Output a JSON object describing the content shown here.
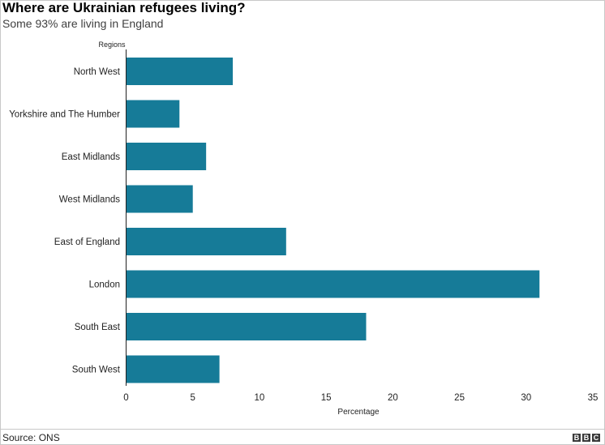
{
  "header": {
    "title": "Where are Ukrainian refugees living?",
    "subtitle": "Some 93% are living in England"
  },
  "footer": {
    "source": "Source: ONS",
    "logo_letters": [
      "B",
      "B",
      "C"
    ]
  },
  "colors": {
    "bar": "#167b98",
    "axis": "#222222",
    "text": "#222222"
  },
  "chart_data": {
    "type": "bar",
    "orientation": "horizontal",
    "ylabel": "Regions",
    "xlabel": "Percentage",
    "categories": [
      "North West",
      "Yorkshire and The Humber",
      "East Midlands",
      "West Midlands",
      "East of England",
      "London",
      "South East",
      "South West"
    ],
    "values": [
      8,
      4,
      6,
      5,
      12,
      31,
      18,
      7
    ],
    "xlim": [
      0,
      35
    ],
    "xticks": [
      0,
      5,
      10,
      15,
      20,
      25,
      30,
      35
    ],
    "grid": false,
    "legend": false
  }
}
